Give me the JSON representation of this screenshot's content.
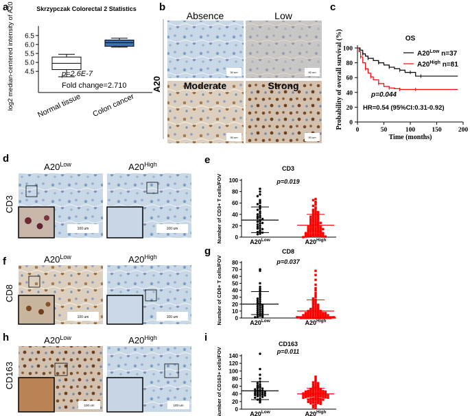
{
  "panel_labels": [
    "a",
    "b",
    "c",
    "d",
    "e",
    "f",
    "g",
    "h",
    "i"
  ],
  "panel_a": {
    "title": "Skrzypczak Colorectal 2 Statistics",
    "ylabel": "log2 median-centered intensity of A20",
    "yticks": [
      "4.5",
      "5.0",
      "5.5",
      "6.0",
      "6.5"
    ],
    "categories": [
      "Normal tissue",
      "Colon cancer"
    ],
    "pvalue": "p=2.6E-7",
    "fold_change": "Fold change=2.710"
  },
  "panel_b": {
    "side_label": "A20",
    "labels": [
      "Absence",
      "Low",
      "Moderate",
      "Strong"
    ],
    "scale_bar": "50 um"
  },
  "panel_c": {
    "title": "OS",
    "legend_low": "A20",
    "legend_low_sup": "Low",
    "legend_low_n": " n=37",
    "legend_high": "A20",
    "legend_high_sup": "High",
    "legend_high_n": " n=81",
    "pvalue": "p=0.044",
    "hr": "HR=0.54 (95%CI:0.31-0.92)",
    "xlabel": "Time (months)",
    "ylabel": "Probability of overall survival (%)",
    "xticks": [
      "0",
      "50",
      "100",
      "150",
      "200"
    ],
    "yticks": [
      "0",
      "20",
      "40",
      "60",
      "80",
      "100"
    ],
    "colors": {
      "low": "#000000",
      "high": "#ff0000"
    }
  },
  "ihc_rows": [
    {
      "marker": "CD3",
      "low_title": "A20",
      "low_sup": "Low",
      "high_title": "A20",
      "high_sup": "High",
      "scale_bar": "100 um"
    },
    {
      "marker": "CD8",
      "low_title": "A20",
      "low_sup": "Low",
      "high_title": "A20",
      "high_sup": "High",
      "scale_bar": "100 um"
    },
    {
      "marker": "CD163",
      "low_title": "A20",
      "low_sup": "Low",
      "high_title": "A20",
      "high_sup": "High",
      "scale_bar": "100 um"
    }
  ],
  "scatter_panels": [
    {
      "title": "CD3",
      "ylabel": "Number of CD3+ T cells/FOV",
      "pvalue": "p=0.019",
      "yticks": [
        "0",
        "20",
        "40",
        "60",
        "80",
        "100"
      ],
      "xlabel_low": "A20",
      "xlabel_low_sup": "Low",
      "xlabel_high": "A20",
      "xlabel_high_sup": "High"
    },
    {
      "title": "CD8",
      "ylabel": "Number of CD8+ T cells/FOV",
      "pvalue": "p=0.037",
      "yticks": [
        "0",
        "10",
        "20",
        "30",
        "40",
        "50",
        "60",
        "70",
        "80"
      ],
      "xlabel_low": "A20",
      "xlabel_low_sup": "Low",
      "xlabel_high": "A20",
      "xlabel_high_sup": "High"
    },
    {
      "title": "CD163",
      "ylabel": "Number of CD163+ cells/FOV",
      "pvalue": "p=0.011",
      "yticks": [
        "0",
        "20",
        "40",
        "60",
        "80",
        "100",
        "120",
        "140"
      ],
      "xlabel_low": "A20",
      "xlabel_low_sup": "Low",
      "xlabel_high": "A20",
      "xlabel_high_sup": "High"
    }
  ],
  "chart_data": [
    {
      "type": "box",
      "panel": "a",
      "title": "Skrzypczak Colorectal 2 Statistics",
      "ylabel": "log2 median-centered intensity of A20",
      "ylim": [
        4.2,
        6.8
      ],
      "categories": [
        "Normal tissue",
        "Colon cancer"
      ],
      "series": [
        {
          "category": "Normal tissue",
          "whisker_low": 4.2,
          "q1": 4.6,
          "median": 4.95,
          "q3": 5.3,
          "whisker_high": 5.45
        },
        {
          "category": "Colon cancer",
          "whisker_low": 5.85,
          "q1": 5.9,
          "median": 6.1,
          "q3": 6.25,
          "whisker_high": 6.35
        }
      ],
      "colors": {
        "Normal tissue": "#ffffff",
        "Colon cancer": "#3a73b5"
      }
    },
    {
      "type": "line",
      "panel": "c",
      "title": "OS",
      "xlabel": "Time (months)",
      "ylabel": "Probability of overall survival (%)",
      "xlim": [
        0,
        200
      ],
      "ylim": [
        0,
        105
      ],
      "series": [
        {
          "name": "A20 Low n=37",
          "color": "#000000",
          "x": [
            0,
            5,
            10,
            15,
            20,
            30,
            40,
            50,
            60,
            70,
            80,
            90,
            100,
            110,
            120,
            190
          ],
          "y": [
            100,
            97,
            92,
            89,
            86,
            83,
            80,
            77,
            74,
            72,
            70,
            67,
            67,
            62,
            62,
            62
          ]
        },
        {
          "name": "A20 High n=81",
          "color": "#ff0000",
          "x": [
            0,
            3,
            6,
            10,
            15,
            20,
            25,
            30,
            40,
            50,
            60,
            70,
            80,
            100,
            110,
            190
          ],
          "y": [
            100,
            95,
            88,
            80,
            72,
            66,
            61,
            57,
            52,
            48,
            46,
            45,
            44,
            44,
            44,
            44
          ]
        }
      ]
    },
    {
      "type": "scatter",
      "panel": "e",
      "title": "CD3",
      "ylabel": "Number of CD3+ T cells/FOV",
      "ylim": [
        0,
        100
      ],
      "categories": [
        "A20 Low",
        "A20 High"
      ],
      "series": [
        {
          "name": "A20 Low",
          "color": "#000000",
          "marker": "circle",
          "mean": 30,
          "sd_low": 8,
          "sd_high": 53,
          "values": [
            85,
            80,
            75,
            72,
            65,
            62,
            60,
            58,
            55,
            52,
            50,
            48,
            45,
            42,
            40,
            38,
            36,
            35,
            33,
            32,
            30,
            28,
            27,
            25,
            24,
            22,
            20,
            18,
            16,
            15,
            14,
            12,
            10,
            9,
            8,
            6,
            5
          ]
        },
        {
          "name": "A20 High",
          "color": "#ff0000",
          "marker": "square",
          "mean": 21,
          "sd_low": 2,
          "sd_high": 40,
          "values": [
            67,
            65,
            62,
            60,
            57,
            55,
            52,
            50,
            48,
            46,
            45,
            44,
            42,
            41,
            40,
            39,
            38,
            37,
            36,
            35,
            34,
            33,
            32,
            31,
            30,
            30,
            29,
            28,
            27,
            26,
            25,
            25,
            24,
            23,
            22,
            22,
            21,
            20,
            20,
            19,
            18,
            18,
            17,
            16,
            16,
            15,
            15,
            14,
            14,
            13,
            13,
            12,
            12,
            11,
            11,
            10,
            10,
            9,
            9,
            8,
            8,
            7,
            7,
            6,
            6,
            5,
            5,
            5,
            4,
            4,
            4,
            3,
            3,
            3,
            2,
            2,
            2,
            1,
            1,
            1,
            0
          ]
        }
      ]
    },
    {
      "type": "scatter",
      "panel": "g",
      "title": "CD8",
      "ylabel": "Number of CD8+ T cells/FOV",
      "ylim": [
        0,
        80
      ],
      "categories": [
        "A20 Low",
        "A20 High"
      ],
      "series": [
        {
          "name": "A20 Low",
          "color": "#000000",
          "marker": "circle",
          "mean": 20,
          "sd_low": 5,
          "sd_high": 38,
          "values": [
            70,
            68,
            50,
            45,
            42,
            40,
            38,
            35,
            33,
            30,
            28,
            27,
            25,
            24,
            22,
            21,
            20,
            19,
            18,
            17,
            16,
            15,
            14,
            13,
            12,
            11,
            10,
            9,
            8,
            7,
            6,
            5,
            4,
            3,
            2,
            2,
            1
          ]
        },
        {
          "name": "A20 High",
          "color": "#ff0000",
          "marker": "square",
          "mean": 10,
          "sd_low": 1,
          "sd_high": 26,
          "values": [
            68,
            62,
            55,
            48,
            43,
            40,
            36,
            33,
            30,
            28,
            26,
            25,
            24,
            22,
            21,
            20,
            19,
            18,
            17,
            16,
            15,
            15,
            14,
            13,
            12,
            12,
            11,
            11,
            10,
            10,
            9,
            9,
            9,
            8,
            8,
            8,
            7,
            7,
            7,
            6,
            6,
            6,
            5,
            5,
            5,
            5,
            4,
            4,
            4,
            4,
            3,
            3,
            3,
            3,
            3,
            2,
            2,
            2,
            2,
            2,
            2,
            1,
            1,
            1,
            1,
            1,
            1,
            1,
            0,
            0,
            0,
            0,
            0,
            0,
            0,
            0,
            0,
            0,
            0,
            0,
            0
          ]
        }
      ]
    },
    {
      "type": "scatter",
      "panel": "i",
      "title": "CD163",
      "ylabel": "Number of CD163+ cells/FOV",
      "ylim": [
        0,
        140
      ],
      "categories": [
        "A20 Low",
        "A20 High"
      ],
      "series": [
        {
          "name": "A20 Low",
          "color": "#000000",
          "marker": "circle",
          "mean": 48,
          "sd_low": 25,
          "sd_high": 72,
          "values": [
            145,
            105,
            90,
            80,
            72,
            68,
            65,
            62,
            60,
            58,
            56,
            55,
            54,
            52,
            50,
            49,
            48,
            47,
            46,
            45,
            44,
            43,
            42,
            41,
            40,
            39,
            38,
            37,
            36,
            35,
            34,
            32,
            30,
            28,
            25,
            22,
            18
          ]
        },
        {
          "name": "A20 High",
          "color": "#ff0000",
          "marker": "square",
          "mean": 40,
          "sd_low": 27,
          "sd_high": 55,
          "values": [
            85,
            80,
            75,
            72,
            70,
            68,
            66,
            64,
            62,
            60,
            58,
            57,
            56,
            55,
            54,
            53,
            52,
            51,
            50,
            50,
            49,
            48,
            48,
            47,
            46,
            46,
            45,
            45,
            44,
            44,
            43,
            43,
            42,
            42,
            41,
            41,
            40,
            40,
            40,
            39,
            39,
            38,
            38,
            37,
            37,
            36,
            36,
            35,
            35,
            34,
            34,
            33,
            33,
            32,
            32,
            31,
            30,
            30,
            29,
            28,
            28,
            27,
            26,
            25,
            25,
            24,
            23,
            22,
            21,
            20,
            19,
            18,
            17,
            16,
            15,
            14,
            12,
            10,
            8,
            5,
            2
          ]
        }
      ]
    }
  ]
}
